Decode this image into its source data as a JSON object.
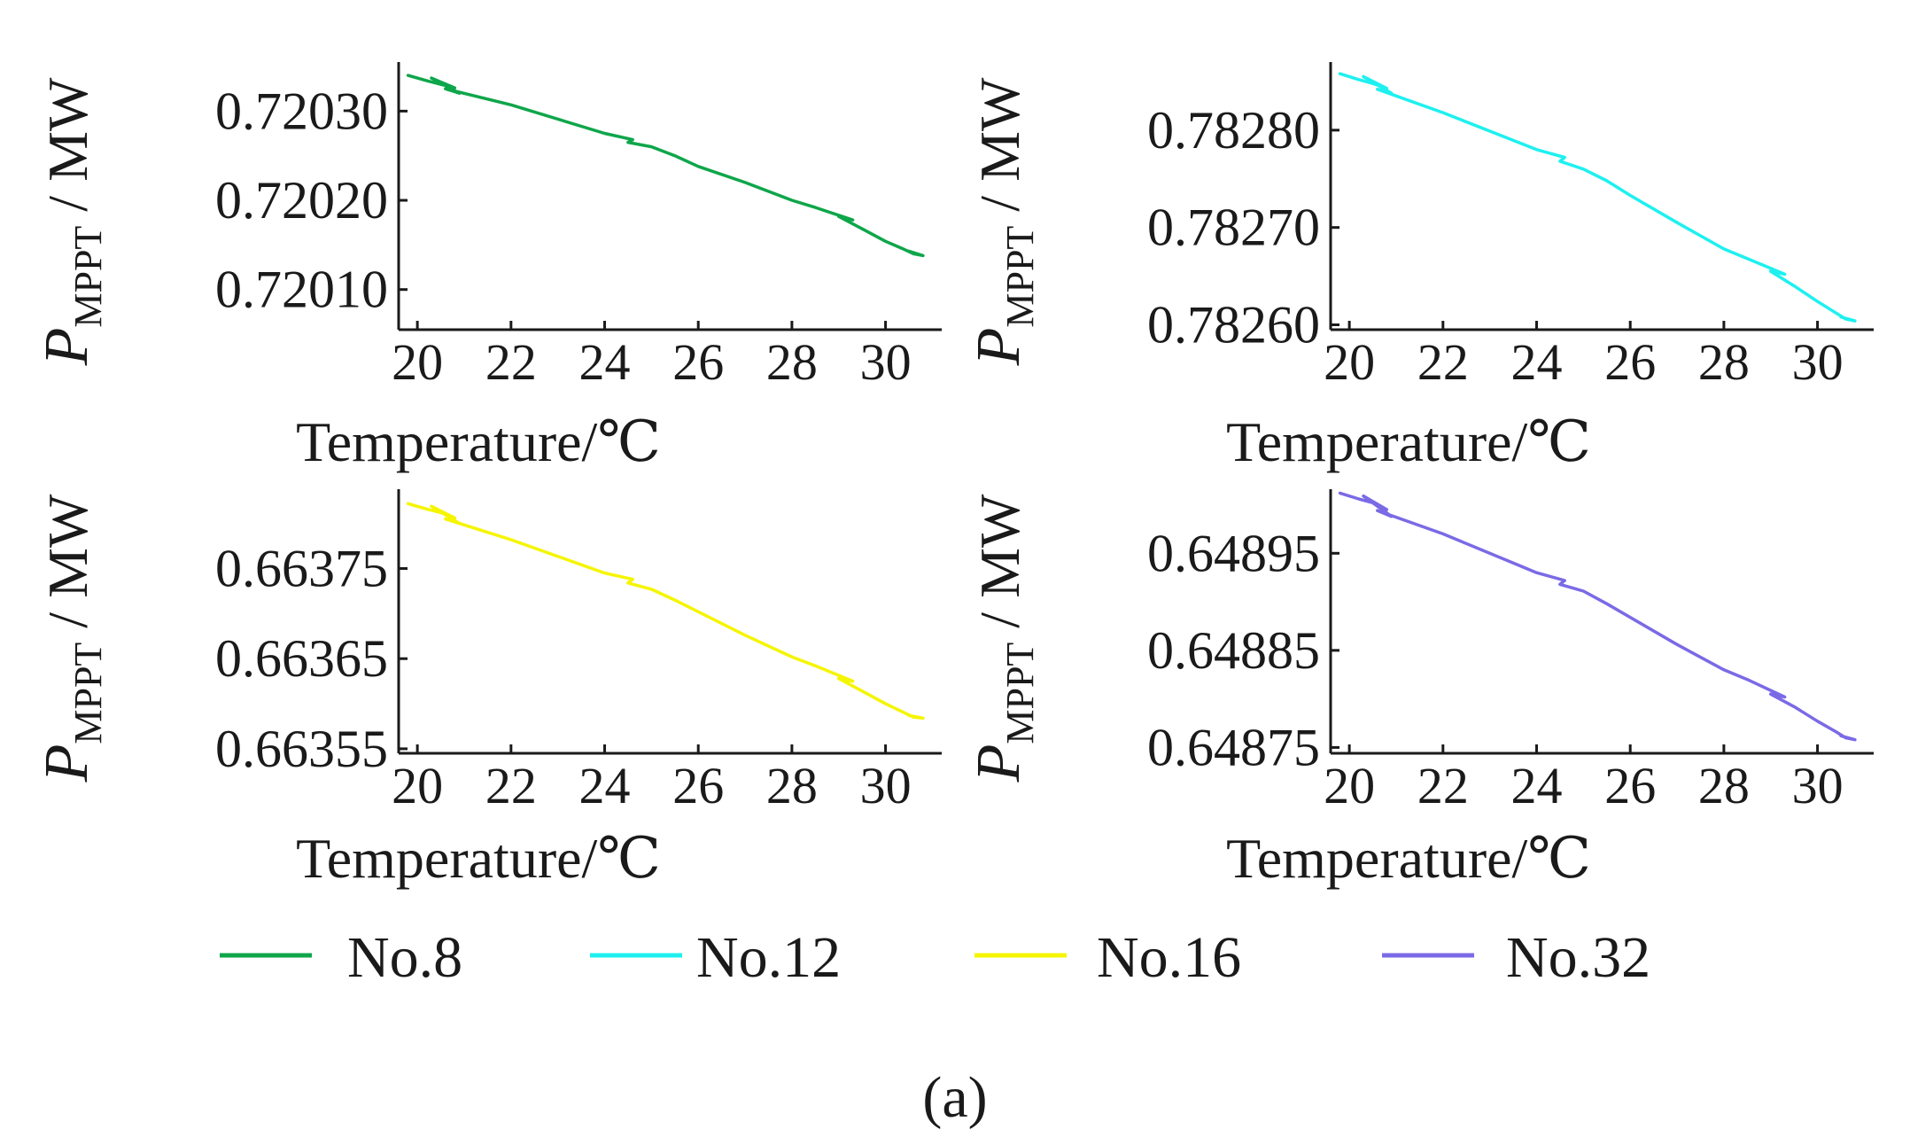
{
  "chart_data": [
    {
      "type": "line",
      "panel": "top-left",
      "xlabel": "Temperature/℃",
      "ylabel": {
        "base": "P",
        "subscript": "MPPT",
        "unit": " / MW"
      },
      "xlim": [
        19.6,
        31.2
      ],
      "ylim": [
        0.720055,
        0.720355
      ],
      "xticks": [
        20,
        22,
        24,
        26,
        28,
        30
      ],
      "yticks": [
        0.7201,
        0.7202,
        0.7203
      ],
      "ytick_labels": [
        "0.72010",
        "0.72020",
        "0.72030"
      ],
      "series": [
        {
          "name": "No.8",
          "color": "#0ea64a",
          "points": [
            [
              19.8,
              0.72034
            ],
            [
              20.2,
              0.720334
            ],
            [
              20.5,
              0.72033
            ],
            [
              20.8,
              0.720326
            ],
            [
              20.3,
              0.720337
            ],
            [
              20.9,
              0.72032
            ],
            [
              20.6,
              0.720325
            ],
            [
              22.0,
              0.720307
            ],
            [
              24.0,
              0.720275
            ],
            [
              24.6,
              0.720268
            ],
            [
              24.5,
              0.720265
            ],
            [
              25.0,
              0.72026
            ],
            [
              25.5,
              0.72025
            ],
            [
              26.0,
              0.720238
            ],
            [
              27.0,
              0.72022
            ],
            [
              28.0,
              0.7202
            ],
            [
              28.5,
              0.720192
            ],
            [
              29.3,
              0.720178
            ],
            [
              29.0,
              0.720182
            ],
            [
              29.5,
              0.720168
            ],
            [
              30.0,
              0.720154
            ],
            [
              30.4,
              0.720145
            ],
            [
              30.6,
              0.72014
            ],
            [
              30.8,
              0.720138
            ],
            [
              30.5,
              0.720143
            ]
          ]
        }
      ]
    },
    {
      "type": "line",
      "panel": "top-right",
      "xlabel": "Temperature/℃",
      "ylabel": {
        "base": "P",
        "subscript": "MPPT",
        "unit": " / MW"
      },
      "xlim": [
        19.6,
        31.2
      ],
      "ylim": [
        0.782595,
        0.78287
      ],
      "xticks": [
        20,
        22,
        24,
        26,
        28,
        30
      ],
      "yticks": [
        0.7826,
        0.7827,
        0.7828
      ],
      "ytick_labels": [
        "0.78260",
        "0.78270",
        "0.78280"
      ],
      "series": [
        {
          "name": "No.12",
          "color": "#1ef0f0",
          "points": [
            [
              19.8,
              0.782858
            ],
            [
              20.2,
              0.782852
            ],
            [
              20.5,
              0.782848
            ],
            [
              20.8,
              0.782843
            ],
            [
              20.3,
              0.782855
            ],
            [
              20.9,
              0.782838
            ],
            [
              20.6,
              0.782842
            ],
            [
              22.0,
              0.782818
            ],
            [
              24.0,
              0.78278
            ],
            [
              24.6,
              0.782772
            ],
            [
              24.5,
              0.782768
            ],
            [
              25.0,
              0.78276
            ],
            [
              25.5,
              0.782748
            ],
            [
              26.0,
              0.782733
            ],
            [
              27.0,
              0.782705
            ],
            [
              28.0,
              0.782678
            ],
            [
              28.5,
              0.782668
            ],
            [
              29.3,
              0.782652
            ],
            [
              29.0,
              0.782655
            ],
            [
              29.5,
              0.78264
            ],
            [
              30.0,
              0.782624
            ],
            [
              30.4,
              0.782612
            ],
            [
              30.6,
              0.782606
            ],
            [
              30.8,
              0.782604
            ],
            [
              30.5,
              0.782608
            ]
          ]
        }
      ]
    },
    {
      "type": "line",
      "panel": "bottom-left",
      "xlabel": "Temperature/℃",
      "ylabel": {
        "base": "P",
        "subscript": "MPPT",
        "unit": " / MW"
      },
      "xlim": [
        19.6,
        31.2
      ],
      "ylim": [
        0.663545,
        0.663838
      ],
      "xticks": [
        20,
        22,
        24,
        26,
        28,
        30
      ],
      "yticks": [
        0.66355,
        0.66365,
        0.66375
      ],
      "ytick_labels": [
        "0.66355",
        "0.66365",
        "0.66375"
      ],
      "series": [
        {
          "name": "No.16",
          "color": "#f5f500",
          "points": [
            [
              19.8,
              0.663822
            ],
            [
              20.2,
              0.663816
            ],
            [
              20.5,
              0.663812
            ],
            [
              20.8,
              0.663806
            ],
            [
              20.3,
              0.663819
            ],
            [
              20.9,
              0.6638
            ],
            [
              20.6,
              0.663805
            ],
            [
              22.0,
              0.663782
            ],
            [
              24.0,
              0.663745
            ],
            [
              24.6,
              0.663738
            ],
            [
              24.5,
              0.663734
            ],
            [
              25.0,
              0.663727
            ],
            [
              25.5,
              0.663715
            ],
            [
              26.0,
              0.663702
            ],
            [
              27.0,
              0.663676
            ],
            [
              28.0,
              0.663652
            ],
            [
              28.5,
              0.663642
            ],
            [
              29.3,
              0.663625
            ],
            [
              29.0,
              0.663628
            ],
            [
              29.5,
              0.663614
            ],
            [
              30.0,
              0.6636
            ],
            [
              30.4,
              0.66359
            ],
            [
              30.6,
              0.663585
            ],
            [
              30.8,
              0.663584
            ],
            [
              30.5,
              0.663587
            ]
          ]
        }
      ]
    },
    {
      "type": "line",
      "panel": "bottom-right",
      "xlabel": "Temperature/℃",
      "ylabel": {
        "base": "P",
        "subscript": "MPPT",
        "unit": " / MW"
      },
      "xlim": [
        19.6,
        31.2
      ],
      "ylim": [
        0.648744,
        0.649016
      ],
      "xticks": [
        20,
        22,
        24,
        26,
        28,
        30
      ],
      "yticks": [
        0.64875,
        0.64885,
        0.64895
      ],
      "ytick_labels": [
        "0.64875",
        "0.64885",
        "0.64895"
      ],
      "series": [
        {
          "name": "No.32",
          "color": "#7a6ae6",
          "points": [
            [
              19.8,
              0.649012
            ],
            [
              20.2,
              0.649006
            ],
            [
              20.5,
              0.649002
            ],
            [
              20.8,
              0.648995
            ],
            [
              20.3,
              0.649009
            ],
            [
              20.9,
              0.648988
            ],
            [
              20.6,
              0.648994
            ],
            [
              22.0,
              0.64897
            ],
            [
              24.0,
              0.64893
            ],
            [
              24.6,
              0.648922
            ],
            [
              24.5,
              0.648918
            ],
            [
              25.0,
              0.648911
            ],
            [
              25.5,
              0.648898
            ],
            [
              26.0,
              0.648884
            ],
            [
              27.0,
              0.648856
            ],
            [
              28.0,
              0.64883
            ],
            [
              28.5,
              0.64882
            ],
            [
              29.3,
              0.648802
            ],
            [
              29.0,
              0.648805
            ],
            [
              29.5,
              0.648792
            ],
            [
              30.0,
              0.648777
            ],
            [
              30.4,
              0.648766
            ],
            [
              30.6,
              0.64876
            ],
            [
              30.8,
              0.648758
            ],
            [
              30.5,
              0.648762
            ]
          ]
        }
      ]
    }
  ],
  "legend": {
    "placement": "bottom",
    "items": [
      {
        "label": "No.8",
        "color": "#0ea64a"
      },
      {
        "label": "No.12",
        "color": "#1ef0f0"
      },
      {
        "label": "No.16",
        "color": "#f5f500"
      },
      {
        "label": "No.32",
        "color": "#7a6ae6"
      }
    ]
  },
  "caption": "(a)"
}
